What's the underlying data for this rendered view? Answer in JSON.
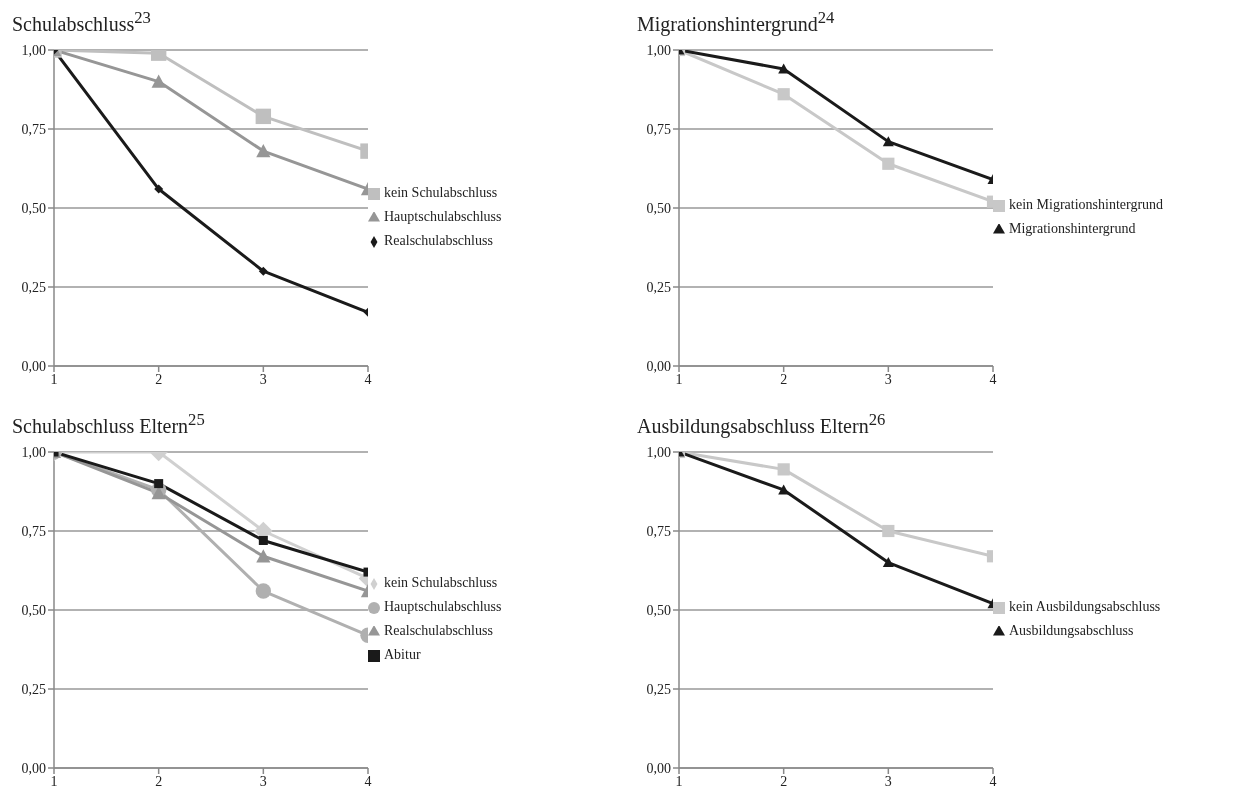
{
  "chart_data": [
    {
      "type": "line",
      "title": "Schulabschluss$^{23}$",
      "x": [
        1,
        2,
        3,
        4
      ],
      "xlim": [
        1,
        4
      ],
      "xticks": [
        1,
        2,
        3,
        4
      ],
      "ylim": [
        0,
        1
      ],
      "yticks": [
        {
          "value": 0,
          "label": "0,00"
        },
        {
          "value": 0.25,
          "label": "0,25"
        },
        {
          "value": 0.5,
          "label": "0,50"
        },
        {
          "value": 0.75,
          "label": "0,75"
        },
        {
          "value": 1,
          "label": "1,00"
        }
      ],
      "grid": "y",
      "legend": "right",
      "series": [
        {
          "name": "kein Schulabschluss",
          "color": "#bfbfbf",
          "marker": "square",
          "values": [
            1,
            0.99,
            0.79,
            0.68
          ]
        },
        {
          "name": "Hauptschulabschluss",
          "color": "#969696",
          "marker": "triangle",
          "values": [
            1,
            0.9,
            0.68,
            0.56
          ]
        },
        {
          "name": "Realschulabschluss",
          "color": "#1a1a1a",
          "marker": "diamond",
          "values": [
            1,
            0.56,
            0.3,
            0.17
          ]
        }
      ]
    },
    {
      "type": "line",
      "title": "Migrationshintergrund$^{24}$",
      "x": [
        1,
        2,
        3,
        4
      ],
      "xlim": [
        1,
        4
      ],
      "xticks": [
        1,
        2,
        3,
        4
      ],
      "ylim": [
        0,
        1
      ],
      "yticks": [
        {
          "value": 0,
          "label": "0,00"
        },
        {
          "value": 0.25,
          "label": "0,25"
        },
        {
          "value": 0.5,
          "label": "0,50"
        },
        {
          "value": 0.75,
          "label": "0,75"
        },
        {
          "value": 1,
          "label": "1,00"
        }
      ],
      "grid": "y",
      "legend": "right",
      "series": [
        {
          "name": "kein Migrationshintergrund",
          "color": "#c8c8c8",
          "marker": "square",
          "values": [
            1,
            0.86,
            0.64,
            0.52
          ]
        },
        {
          "name": "Migrationshintergrund",
          "color": "#1a1a1a",
          "marker": "triangle",
          "values": [
            1,
            0.94,
            0.71,
            0.59
          ]
        }
      ]
    },
    {
      "type": "line",
      "title": "Schulabschluss Eltern$^{25}$",
      "x": [
        1,
        2,
        3,
        4
      ],
      "xlim": [
        1,
        4
      ],
      "xticks": [
        1,
        2,
        3,
        4
      ],
      "ylim": [
        0,
        1
      ],
      "yticks": [
        {
          "value": 0,
          "label": "0,00"
        },
        {
          "value": 0.25,
          "label": "0,25"
        },
        {
          "value": 0.5,
          "label": "0,50"
        },
        {
          "value": 0.75,
          "label": "0,75"
        },
        {
          "value": 1,
          "label": "1,00"
        }
      ],
      "grid": "y",
      "legend": "right",
      "series": [
        {
          "name": "kein Schulabschluss",
          "color": "#d0d0d0",
          "marker": "diamond",
          "values": [
            1,
            1,
            0.75,
            0.6
          ]
        },
        {
          "name": "Hauptschulabschluss",
          "color": "#b0b0b0",
          "marker": "circle",
          "values": [
            1,
            0.88,
            0.56,
            0.42
          ]
        },
        {
          "name": "Realschulabschluss",
          "color": "#969696",
          "marker": "triangle",
          "values": [
            1,
            0.87,
            0.67,
            0.56
          ]
        },
        {
          "name": "Abitur",
          "color": "#1a1a1a",
          "marker": "square",
          "values": [
            1,
            0.9,
            0.72,
            0.62
          ]
        }
      ]
    },
    {
      "type": "line",
      "title": "Ausbildungsabschluss Eltern$^{26}$",
      "x": [
        1,
        2,
        3,
        4
      ],
      "xlim": [
        1,
        4
      ],
      "xticks": [
        1,
        2,
        3,
        4
      ],
      "ylim": [
        0,
        1
      ],
      "yticks": [
        {
          "value": 0,
          "label": "0,00"
        },
        {
          "value": 0.25,
          "label": "0,25"
        },
        {
          "value": 0.5,
          "label": "0,50"
        },
        {
          "value": 0.75,
          "label": "0,75"
        },
        {
          "value": 1,
          "label": "1,00"
        }
      ],
      "grid": "y",
      "legend": "right",
      "series": [
        {
          "name": "kein Ausbildungsabschluss",
          "color": "#c8c8c8",
          "marker": "square",
          "values": [
            1,
            0.945,
            0.75,
            0.67
          ]
        },
        {
          "name": "Ausbildungsabschluss",
          "color": "#1a1a1a",
          "marker": "triangle",
          "values": [
            1,
            0.88,
            0.65,
            0.52
          ]
        }
      ]
    }
  ]
}
